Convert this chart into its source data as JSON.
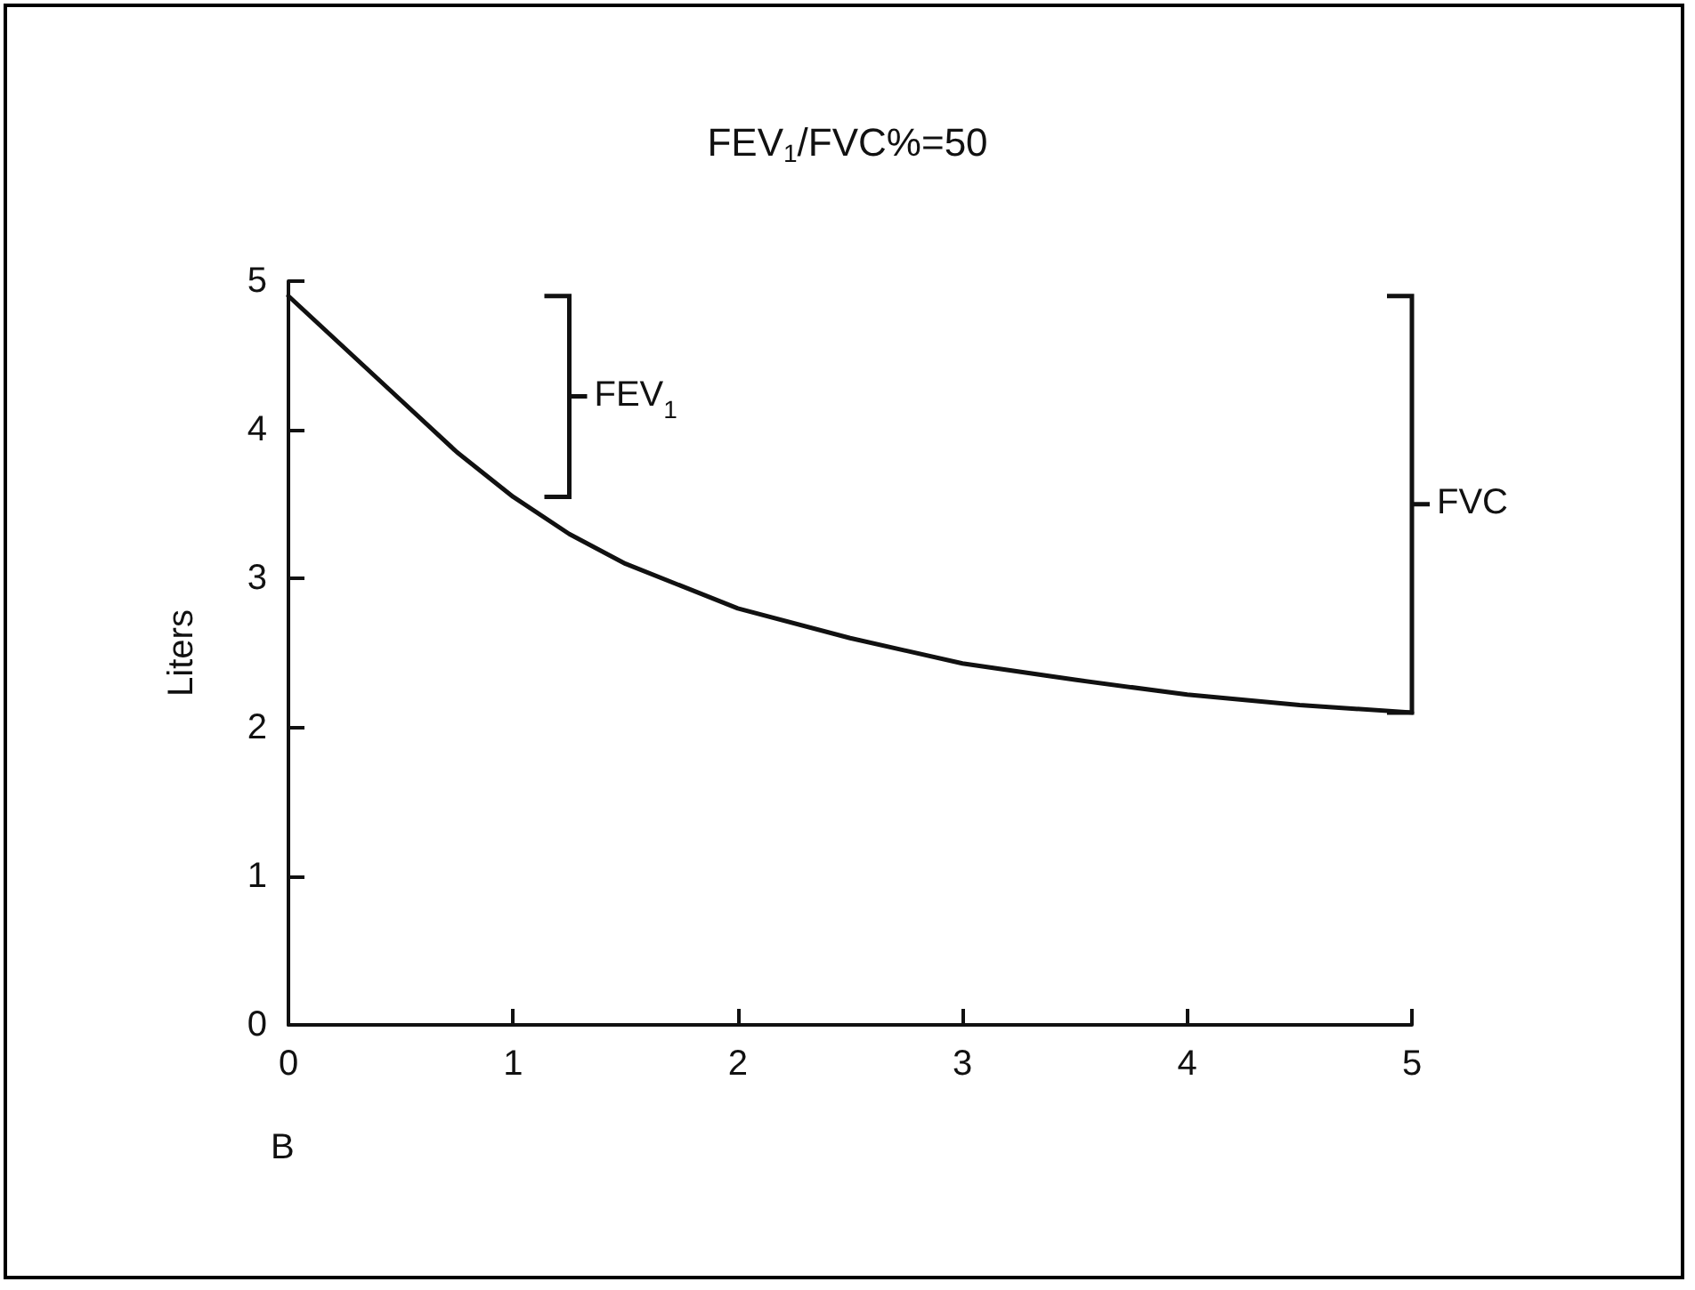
{
  "chart_data": {
    "type": "line",
    "title": "FEV$_{1}$/FVC%=50",
    "ylabel": "Liters",
    "x": [
      0,
      0.25,
      0.5,
      0.75,
      1,
      1.25,
      1.5,
      2,
      2.5,
      3,
      3.5,
      4,
      4.5,
      5
    ],
    "series": [
      {
        "color": "#111111",
        "values": [
          4.9,
          4.55,
          4.2,
          3.85,
          3.55,
          3.3,
          3.1,
          2.8,
          2.6,
          2.43,
          2.32,
          2.22,
          2.15,
          2.1
        ]
      }
    ],
    "xlim": [
      0,
      5
    ],
    "xticks": [
      0,
      1,
      2,
      3,
      4,
      5
    ],
    "ylim": [
      0,
      5
    ],
    "yticks": [
      0,
      1,
      2,
      3,
      4,
      5
    ],
    "annotations": [
      "FEV$_{1}$",
      "FVC",
      "B"
    ],
    "grid": false,
    "marker": "none",
    "line_style": "solid"
  }
}
